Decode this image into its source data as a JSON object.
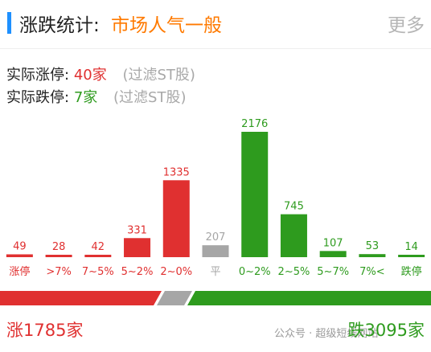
{
  "header": {
    "title": "涨跌统计:",
    "status": "市场人气一般",
    "more_label": "更多"
  },
  "stats": {
    "limit_up_label": "实际涨停:",
    "limit_up_value": "40家",
    "limit_up_note": "(过滤ST股)",
    "limit_down_label": "实际跌停:",
    "limit_down_value": "7家",
    "limit_down_note": "(过滤ST股)"
  },
  "colors": {
    "up": "#e03030",
    "flat": "#a6a6a6",
    "down": "#2e9b1e",
    "accent": "#1e90ff",
    "status": "#ff7a00"
  },
  "chart_data": {
    "type": "bar",
    "categories": [
      "涨停",
      ">7%",
      "7~5%",
      "5~2%",
      "2~0%",
      "平",
      "0~2%",
      "2~5%",
      "5~7%",
      "7%<",
      "跌停"
    ],
    "values": [
      49,
      28,
      42,
      331,
      1335,
      207,
      2176,
      745,
      107,
      53,
      14
    ],
    "value_labels": [
      "49",
      "28",
      "42",
      "331",
      "1335",
      "207",
      "2176",
      "745",
      "107",
      "53",
      "14"
    ],
    "groups": [
      "up",
      "up",
      "up",
      "up",
      "up",
      "flat",
      "down",
      "down",
      "down",
      "down",
      "down"
    ],
    "title": "",
    "xlabel": "",
    "ylabel": ""
  },
  "summary": {
    "up_text": "涨1785家",
    "down_text": "跌3095家",
    "up_total": 1785,
    "down_total": 3095
  },
  "watermark": "公众号 · 超级短线网站"
}
